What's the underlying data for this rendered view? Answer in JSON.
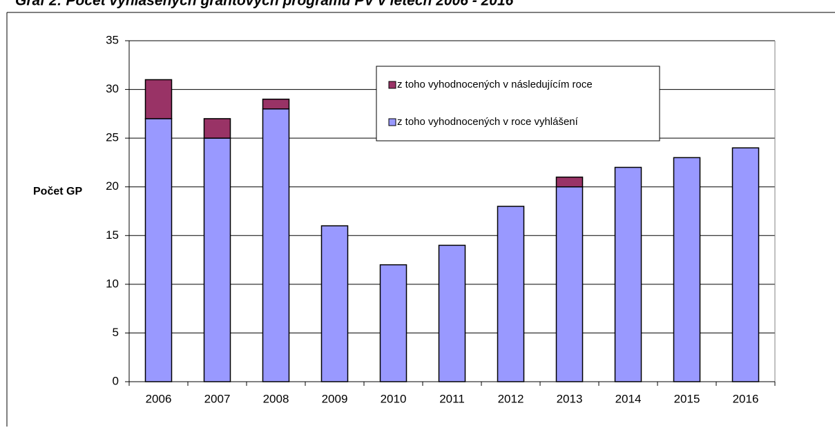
{
  "chart_data": {
    "type": "stacked-bar",
    "title": "Graf 2: Počet vyhlášených grantových programů PV v letech 2006 - 2016",
    "ylabel": "Počet GP",
    "categories": [
      "2006",
      "2007",
      "2008",
      "2009",
      "2010",
      "2011",
      "2012",
      "2013",
      "2014",
      "2015",
      "2016"
    ],
    "series": [
      {
        "name": "z toho vyhodnocených v roce vyhlášení",
        "color": "#9999ff",
        "values": [
          27,
          25,
          28,
          16,
          12,
          14,
          18,
          20,
          22,
          23,
          24
        ]
      },
      {
        "name": "z toho vyhodnocených v následujícím roce",
        "color": "#993366",
        "values": [
          4,
          2,
          1,
          0,
          0,
          0,
          0,
          1,
          0,
          0,
          0
        ]
      }
    ],
    "ylim": [
      0,
      35
    ],
    "yticks": [
      0,
      5,
      10,
      15,
      20,
      25,
      30,
      35
    ],
    "grid": true
  }
}
